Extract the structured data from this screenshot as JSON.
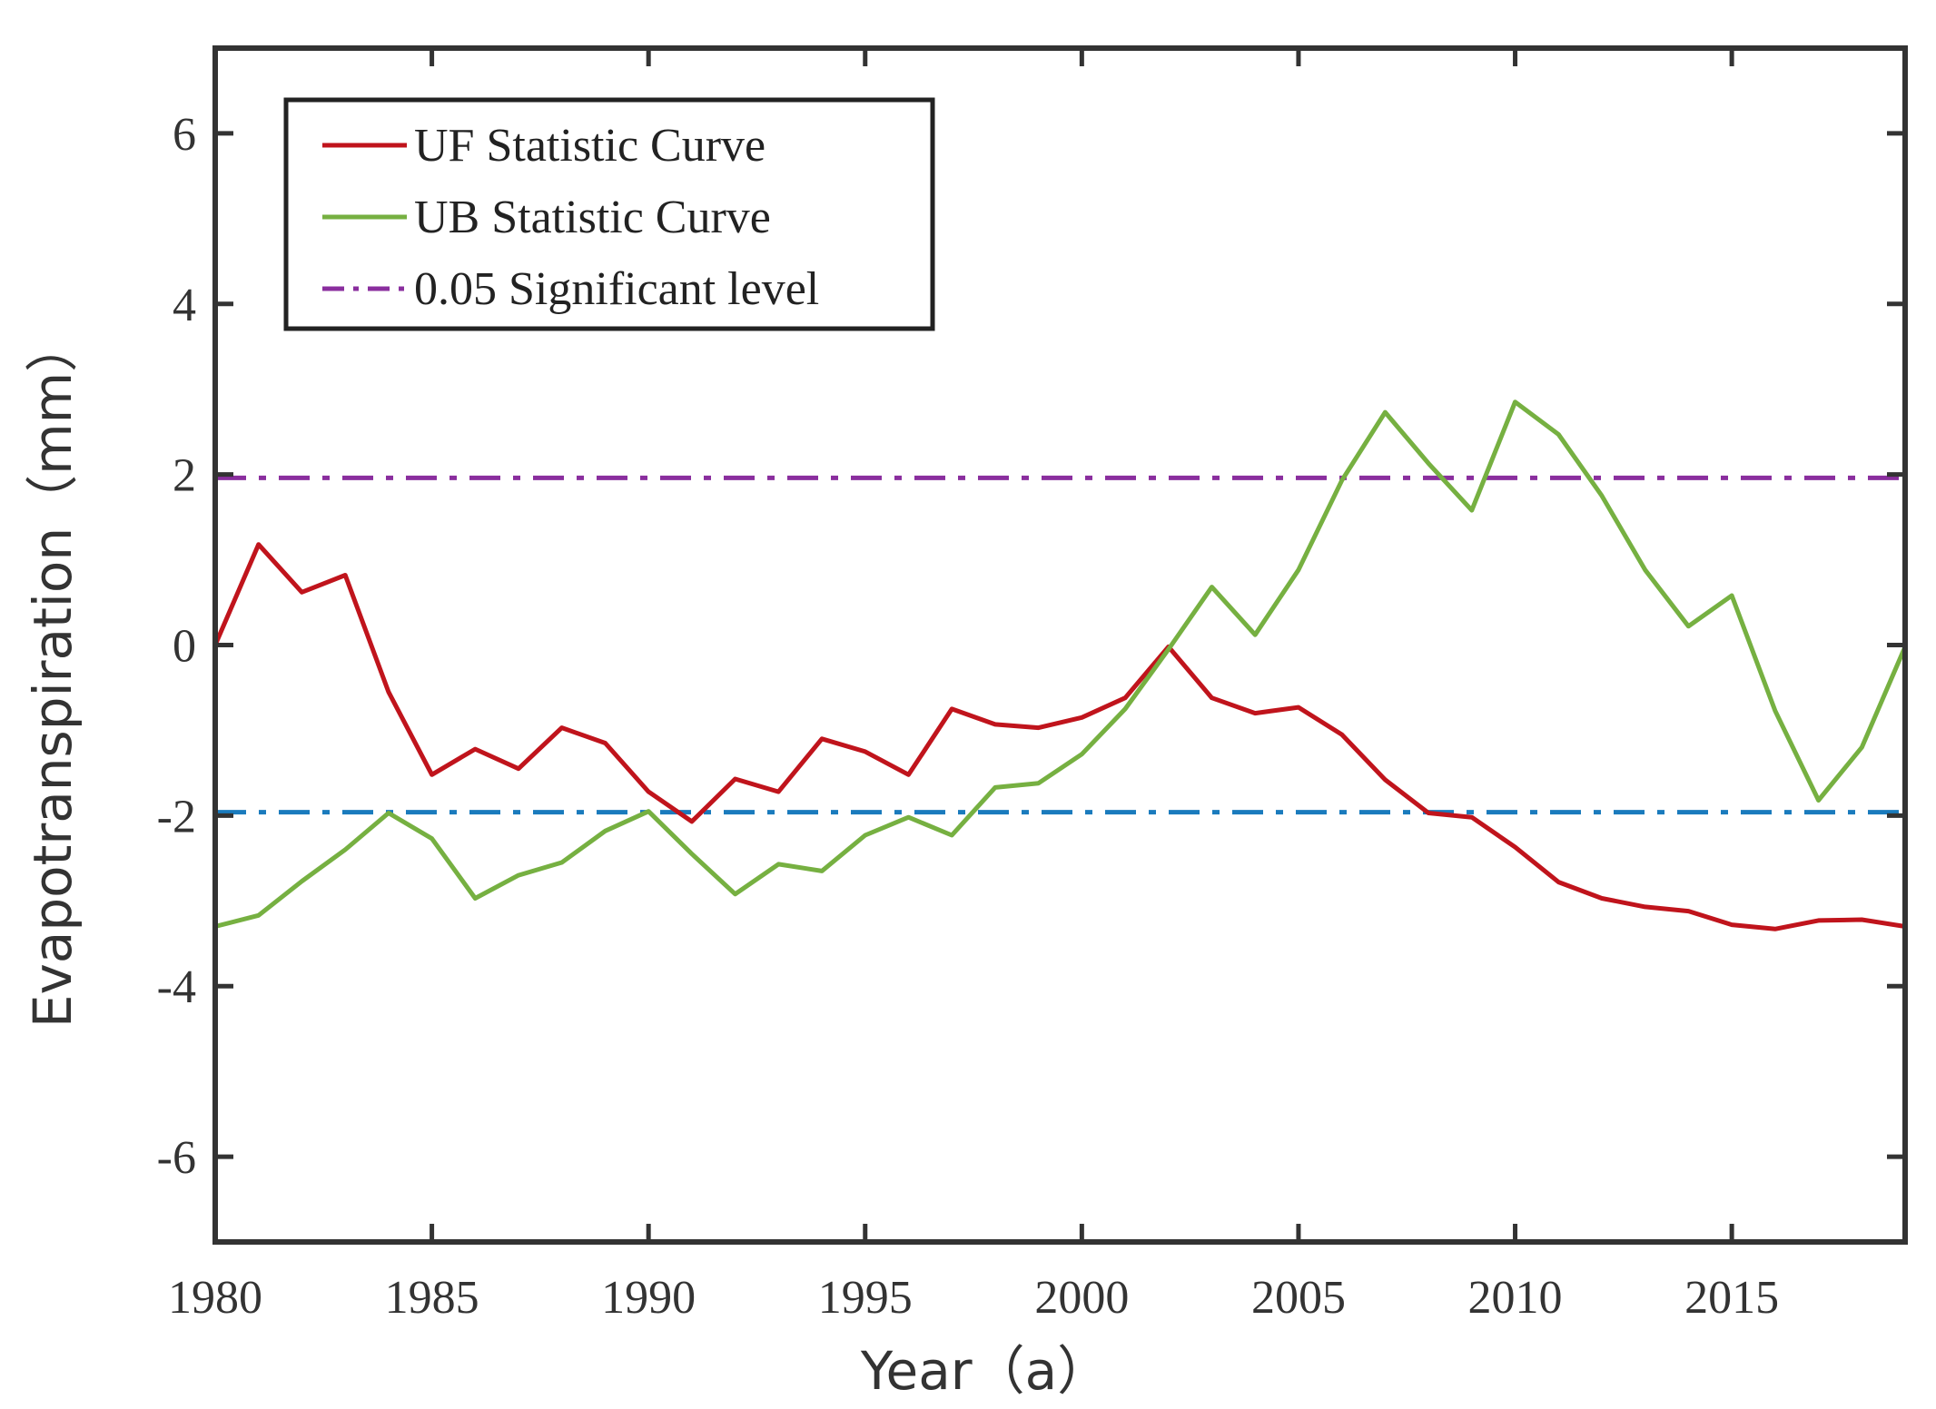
{
  "chart_data": {
    "type": "line",
    "title": "",
    "xlabel": "Year（a）",
    "ylabel": "Evapotranspiration（mm）",
    "xlim": [
      1980,
      2019
    ],
    "ylim": [
      -7,
      7
    ],
    "xticks": [
      1980,
      1985,
      1990,
      1995,
      2000,
      2005,
      2010,
      2015
    ],
    "xtick_labels": [
      "1980",
      "1985",
      "1990",
      "1995",
      "2000",
      "2005",
      "2010",
      "2015"
    ],
    "yticks": [
      -6,
      -4,
      -2,
      0,
      2,
      4,
      6
    ],
    "ytick_labels": [
      "-6",
      "-4",
      "-2",
      "0",
      "2",
      "4",
      "6"
    ],
    "grid": false,
    "legend_position": "top-left",
    "x": [
      1980,
      1981,
      1982,
      1983,
      1984,
      1985,
      1986,
      1987,
      1988,
      1989,
      1990,
      1991,
      1992,
      1993,
      1994,
      1995,
      1996,
      1997,
      1998,
      1999,
      2000,
      2001,
      2002,
      2003,
      2004,
      2005,
      2006,
      2007,
      2008,
      2009,
      2010,
      2011,
      2012,
      2013,
      2014,
      2015,
      2016,
      2017,
      2018,
      2019
    ],
    "series": [
      {
        "name": "UF Statistic Curve",
        "color": "#c0141c",
        "style": "solid",
        "values": [
          0.0,
          1.18,
          0.62,
          0.82,
          -0.55,
          -1.52,
          -1.22,
          -1.45,
          -0.97,
          -1.15,
          -1.72,
          -2.07,
          -1.57,
          -1.72,
          -1.1,
          -1.25,
          -1.52,
          -0.75,
          -0.93,
          -0.97,
          -0.85,
          -0.62,
          -0.02,
          -0.62,
          -0.8,
          -0.73,
          -1.05,
          -1.58,
          -1.97,
          -2.02,
          -2.37,
          -2.78,
          -2.97,
          -3.07,
          -3.12,
          -3.28,
          -3.33,
          -3.23,
          -3.22,
          -3.3
        ]
      },
      {
        "name": "UB Statistic Curve",
        "color": "#76b041",
        "style": "solid",
        "values": [
          -3.3,
          -3.17,
          -2.77,
          -2.4,
          -1.97,
          -2.27,
          -2.97,
          -2.7,
          -2.55,
          -2.18,
          -1.95,
          -2.45,
          -2.92,
          -2.57,
          -2.65,
          -2.23,
          -2.02,
          -2.23,
          -1.67,
          -1.62,
          -1.28,
          -0.75,
          -0.05,
          0.68,
          0.12,
          0.88,
          1.93,
          2.73,
          2.13,
          1.58,
          2.85,
          2.47,
          1.75,
          0.88,
          0.22,
          0.58,
          -0.77,
          -1.82,
          -1.2,
          -0.02
        ]
      }
    ],
    "reference_lines": [
      {
        "name": "0.05 Significant level",
        "y": 1.96,
        "color": "#8a2e9e",
        "style": "dashdot",
        "in_legend": true
      },
      {
        "name": "",
        "y": -1.96,
        "color": "#1a7bbd",
        "style": "dashdot",
        "in_legend": false
      }
    ]
  },
  "legend": [
    {
      "label": "UF Statistic Curve",
      "color": "#c0141c",
      "style": "solid"
    },
    {
      "label": "UB Statistic Curve",
      "color": "#76b041",
      "style": "solid"
    },
    {
      "label": "0.05 Significant level",
      "color": "#8a2e9e",
      "style": "dashdot"
    }
  ]
}
